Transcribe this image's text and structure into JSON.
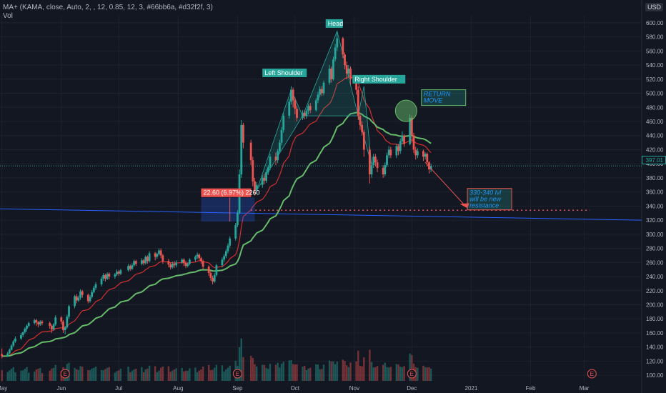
{
  "header": {
    "indicator_legend": "MA+ (KAMA, close, Auto, 2, , 12, 0.85, 12, 3, #66bb6a, #d32f2f, 3)",
    "volume_legend": "Vol",
    "currency": "USD",
    "last_price": "397.01"
  },
  "colors": {
    "background": "#131722",
    "up": "#26a69a",
    "down": "#ef5350",
    "kama_fast": "#66bb6a",
    "kama_slow": "#d32f2f",
    "trendline": "#2962ff",
    "grid": "#1e222d"
  },
  "annotations": {
    "head": "Head",
    "left_shoulder": "Left Shoulder",
    "right_shoulder": "Right Shoulder",
    "return_move": "RETURN\nMOVE",
    "resistance_note": "330-340 lvl\nwill be new\nresistance",
    "measure_label": "22.60 (6.97%) 2260"
  },
  "earnings_marker": "E",
  "chart_data": {
    "type": "candlestick",
    "title": "",
    "xlabel": "",
    "ylabel": "",
    "ylim": [
      90,
      610
    ],
    "y_ticks": [
      100,
      120,
      140,
      160,
      180,
      200,
      220,
      240,
      260,
      280,
      300,
      320,
      340,
      360,
      380,
      400,
      420,
      440,
      460,
      480,
      500,
      520,
      540,
      560,
      580,
      600
    ],
    "x_ticks": [
      {
        "label": "May",
        "date": "2020-05-01"
      },
      {
        "label": "Jun",
        "date": "2020-06-01"
      },
      {
        "label": "Jul",
        "date": "2020-07-01"
      },
      {
        "label": "Aug",
        "date": "2020-08-01"
      },
      {
        "label": "Sep",
        "date": "2020-09-01"
      },
      {
        "label": "Oct",
        "date": "2020-10-01"
      },
      {
        "label": "Nov",
        "date": "2020-11-01"
      },
      {
        "label": "Dec",
        "date": "2020-12-01"
      },
      {
        "label": "2021",
        "date": "2021-01-01"
      },
      {
        "label": "Feb",
        "date": "2021-02-01"
      },
      {
        "label": "Mar",
        "date": "2021-03-01"
      }
    ],
    "earnings_dates": [
      "2020-06-03",
      "2020-09-01",
      "2020-12-01",
      "2021-03-05"
    ],
    "candles": [
      [
        "2020-05-01",
        130,
        127,
        138,
        124
      ],
      [
        "2020-05-04",
        127,
        131,
        133,
        126
      ],
      [
        "2020-05-05",
        131,
        136,
        138,
        130
      ],
      [
        "2020-05-06",
        136,
        142,
        144,
        135
      ],
      [
        "2020-05-07",
        142,
        148,
        150,
        140
      ],
      [
        "2020-05-08",
        148,
        152,
        155,
        146
      ],
      [
        "2020-05-11",
        152,
        157,
        160,
        150
      ],
      [
        "2020-05-12",
        157,
        161,
        162,
        154
      ],
      [
        "2020-05-13",
        161,
        166,
        168,
        159
      ],
      [
        "2020-05-14",
        166,
        170,
        172,
        162
      ],
      [
        "2020-05-15",
        170,
        174,
        176,
        168
      ],
      [
        "2020-05-18",
        174,
        178,
        180,
        172
      ],
      [
        "2020-05-19",
        178,
        175,
        180,
        170
      ],
      [
        "2020-05-20",
        175,
        172,
        177,
        168
      ],
      [
        "2020-05-21",
        172,
        176,
        178,
        170
      ],
      [
        "2020-05-22",
        176,
        174,
        178,
        171
      ],
      [
        "2020-05-26",
        174,
        170,
        176,
        166
      ],
      [
        "2020-05-27",
        170,
        165,
        172,
        160
      ],
      [
        "2020-05-28",
        165,
        172,
        174,
        163
      ],
      [
        "2020-05-29",
        172,
        182,
        185,
        170
      ],
      [
        "2020-06-01",
        182,
        176,
        184,
        172
      ],
      [
        "2020-06-02",
        176,
        164,
        178,
        160
      ],
      [
        "2020-06-03",
        164,
        168,
        170,
        158
      ],
      [
        "2020-06-04",
        168,
        183,
        186,
        166
      ],
      [
        "2020-06-05",
        183,
        198,
        200,
        180
      ],
      [
        "2020-06-08",
        198,
        212,
        214,
        195
      ],
      [
        "2020-06-09",
        212,
        206,
        215,
        202
      ],
      [
        "2020-06-10",
        206,
        210,
        213,
        204
      ],
      [
        "2020-06-11",
        210,
        219,
        222,
        207
      ],
      [
        "2020-06-12",
        219,
        214,
        221,
        210
      ],
      [
        "2020-06-15",
        214,
        205,
        216,
        202
      ],
      [
        "2020-06-16",
        205,
        211,
        214,
        203
      ],
      [
        "2020-06-17",
        211,
        218,
        221,
        209
      ],
      [
        "2020-06-18",
        218,
        224,
        227,
        216
      ],
      [
        "2020-06-19",
        224,
        229,
        232,
        221
      ],
      [
        "2020-06-22",
        229,
        237,
        240,
        226
      ],
      [
        "2020-06-23",
        237,
        242,
        245,
        234
      ],
      [
        "2020-06-24",
        242,
        237,
        244,
        233
      ],
      [
        "2020-06-25",
        237,
        244,
        246,
        235
      ],
      [
        "2020-06-26",
        244,
        240,
        246,
        236
      ],
      [
        "2020-06-29",
        240,
        243,
        245,
        237
      ],
      [
        "2020-06-30",
        243,
        247,
        250,
        241
      ],
      [
        "2020-07-01",
        247,
        244,
        249,
        241
      ],
      [
        "2020-07-02",
        244,
        249,
        251,
        242
      ],
      [
        "2020-07-06",
        249,
        255,
        258,
        247
      ],
      [
        "2020-07-07",
        255,
        251,
        257,
        248
      ],
      [
        "2020-07-08",
        251,
        256,
        259,
        249
      ],
      [
        "2020-07-09",
        256,
        262,
        264,
        254
      ],
      [
        "2020-07-10",
        262,
        258,
        264,
        255
      ],
      [
        "2020-07-13",
        258,
        263,
        266,
        256
      ],
      [
        "2020-07-14",
        263,
        259,
        265,
        256
      ],
      [
        "2020-07-15",
        259,
        268,
        270,
        257
      ],
      [
        "2020-07-16",
        268,
        262,
        270,
        258
      ],
      [
        "2020-07-17",
        262,
        273,
        276,
        260
      ],
      [
        "2020-07-20",
        273,
        268,
        275,
        263
      ],
      [
        "2020-07-21",
        268,
        272,
        274,
        265
      ],
      [
        "2020-07-22",
        272,
        277,
        280,
        270
      ],
      [
        "2020-07-23",
        277,
        270,
        280,
        266
      ],
      [
        "2020-07-24",
        270,
        262,
        272,
        258
      ],
      [
        "2020-07-27",
        262,
        257,
        265,
        253
      ],
      [
        "2020-07-28",
        257,
        253,
        260,
        250
      ],
      [
        "2020-07-29",
        253,
        258,
        261,
        251
      ],
      [
        "2020-07-30",
        258,
        256,
        262,
        252
      ],
      [
        "2020-07-31",
        256,
        260,
        263,
        253
      ],
      [
        "2020-08-03",
        260,
        264,
        266,
        258
      ],
      [
        "2020-08-04",
        264,
        259,
        266,
        255
      ],
      [
        "2020-08-05",
        259,
        255,
        262,
        252
      ],
      [
        "2020-08-06",
        255,
        258,
        260,
        253
      ],
      [
        "2020-08-07",
        258,
        264,
        266,
        256
      ],
      [
        "2020-08-10",
        264,
        268,
        270,
        261
      ],
      [
        "2020-08-11",
        268,
        271,
        274,
        265
      ],
      [
        "2020-08-12",
        271,
        266,
        273,
        263
      ],
      [
        "2020-08-13",
        266,
        262,
        268,
        258
      ],
      [
        "2020-08-14",
        262,
        254,
        264,
        250
      ],
      [
        "2020-08-17",
        254,
        245,
        256,
        241
      ],
      [
        "2020-08-18",
        245,
        238,
        248,
        234
      ],
      [
        "2020-08-19",
        238,
        233,
        241,
        229
      ],
      [
        "2020-08-20",
        233,
        242,
        245,
        231
      ],
      [
        "2020-08-21",
        242,
        256,
        258,
        240
      ],
      [
        "2020-08-24",
        256,
        264,
        267,
        253
      ],
      [
        "2020-08-25",
        264,
        269,
        272,
        261
      ],
      [
        "2020-08-26",
        269,
        276,
        279,
        266
      ],
      [
        "2020-08-27",
        276,
        284,
        287,
        273
      ],
      [
        "2020-08-28",
        284,
        294,
        297,
        281
      ],
      [
        "2020-08-31",
        294,
        313,
        316,
        291
      ],
      [
        "2020-09-01",
        313,
        330,
        334,
        310
      ],
      [
        "2020-09-02",
        330,
        385,
        392,
        328
      ],
      [
        "2020-09-03",
        385,
        455,
        462,
        380
      ],
      [
        "2020-09-04",
        455,
        430,
        458,
        422
      ],
      [
        "2020-09-08",
        430,
        405,
        434,
        398
      ],
      [
        "2020-09-09",
        405,
        375,
        410,
        368
      ],
      [
        "2020-09-10",
        375,
        362,
        380,
        355
      ],
      [
        "2020-09-11",
        362,
        370,
        374,
        357
      ],
      [
        "2020-09-14",
        370,
        380,
        384,
        366
      ],
      [
        "2020-09-15",
        380,
        376,
        386,
        371
      ],
      [
        "2020-09-16",
        376,
        388,
        392,
        373
      ],
      [
        "2020-09-17",
        388,
        395,
        398,
        384
      ],
      [
        "2020-09-18",
        395,
        410,
        414,
        391
      ],
      [
        "2020-09-21",
        410,
        405,
        416,
        398
      ],
      [
        "2020-09-22",
        405,
        418,
        421,
        401
      ],
      [
        "2020-09-23",
        418,
        430,
        434,
        414
      ],
      [
        "2020-09-24",
        430,
        448,
        452,
        426
      ],
      [
        "2020-09-25",
        448,
        468,
        472,
        444
      ],
      [
        "2020-09-28",
        468,
        488,
        492,
        464
      ],
      [
        "2020-09-29",
        488,
        505,
        510,
        484
      ],
      [
        "2020-09-30",
        505,
        490,
        508,
        480
      ],
      [
        "2020-10-01",
        490,
        478,
        494,
        470
      ],
      [
        "2020-10-02",
        478,
        465,
        482,
        460
      ],
      [
        "2020-10-05",
        465,
        472,
        476,
        462
      ],
      [
        "2020-10-06",
        472,
        468,
        476,
        463
      ],
      [
        "2020-10-07",
        468,
        475,
        478,
        464
      ],
      [
        "2020-10-08",
        475,
        482,
        485,
        470
      ],
      [
        "2020-10-09",
        482,
        476,
        486,
        472
      ],
      [
        "2020-10-12",
        476,
        490,
        493,
        474
      ],
      [
        "2020-10-13",
        490,
        498,
        502,
        486
      ],
      [
        "2020-10-14",
        498,
        506,
        510,
        494
      ],
      [
        "2020-10-15",
        506,
        500,
        510,
        496
      ],
      [
        "2020-10-16",
        500,
        515,
        518,
        497
      ],
      [
        "2020-10-19",
        515,
        535,
        540,
        512
      ],
      [
        "2020-10-20",
        535,
        520,
        538,
        515
      ],
      [
        "2020-10-21",
        520,
        548,
        552,
        518
      ],
      [
        "2020-10-22",
        548,
        565,
        570,
        545
      ],
      [
        "2020-10-23",
        565,
        578,
        588,
        560
      ],
      [
        "2020-10-26",
        578,
        555,
        580,
        550
      ],
      [
        "2020-10-27",
        555,
        540,
        558,
        534
      ],
      [
        "2020-10-28",
        540,
        528,
        545,
        520
      ],
      [
        "2020-10-29",
        528,
        535,
        540,
        522
      ],
      [
        "2020-10-30",
        535,
        520,
        538,
        512
      ],
      [
        "2020-11-02",
        520,
        505,
        524,
        498
      ],
      [
        "2020-11-03",
        505,
        468,
        510,
        462
      ],
      [
        "2020-11-04",
        468,
        455,
        472,
        448
      ],
      [
        "2020-11-05",
        455,
        445,
        460,
        440
      ],
      [
        "2020-11-06",
        445,
        420,
        448,
        410
      ],
      [
        "2020-11-09",
        420,
        385,
        425,
        372
      ],
      [
        "2020-11-10",
        385,
        398,
        402,
        380
      ],
      [
        "2020-11-11",
        398,
        410,
        414,
        394
      ],
      [
        "2020-11-12",
        410,
        402,
        414,
        396
      ],
      [
        "2020-11-13",
        402,
        394,
        406,
        388
      ],
      [
        "2020-11-16",
        394,
        385,
        398,
        380
      ],
      [
        "2020-11-17",
        385,
        398,
        402,
        382
      ],
      [
        "2020-11-18",
        398,
        412,
        416,
        395
      ],
      [
        "2020-11-19",
        412,
        420,
        425,
        408
      ],
      [
        "2020-11-20",
        420,
        412,
        424,
        408
      ],
      [
        "2020-11-23",
        412,
        425,
        428,
        408
      ],
      [
        "2020-11-24",
        425,
        418,
        428,
        412
      ],
      [
        "2020-11-25",
        418,
        432,
        436,
        414
      ],
      [
        "2020-11-26",
        432,
        440,
        446,
        428
      ],
      [
        "2020-11-27",
        440,
        428,
        442,
        424
      ],
      [
        "2020-11-30",
        428,
        465,
        470,
        426
      ],
      [
        "2020-12-01",
        465,
        440,
        468,
        430
      ],
      [
        "2020-12-02",
        440,
        420,
        444,
        415
      ],
      [
        "2020-12-03",
        420,
        412,
        424,
        406
      ],
      [
        "2020-12-04",
        412,
        418,
        422,
        408
      ],
      [
        "2020-12-07",
        418,
        410,
        420,
        404
      ],
      [
        "2020-12-08",
        410,
        414,
        416,
        406
      ],
      [
        "2020-12-09",
        414,
        402,
        416,
        396
      ],
      [
        "2020-12-10",
        402,
        392,
        404,
        386
      ],
      [
        "2020-12-11",
        392,
        397,
        400,
        388
      ]
    ],
    "patterns": {
      "neckline": 468,
      "left_shoulder_peak": 505,
      "head_peak": 588,
      "right_shoulder_peak": 510,
      "resistance_zone": [
        330,
        340
      ],
      "return_move_target": 465
    }
  }
}
